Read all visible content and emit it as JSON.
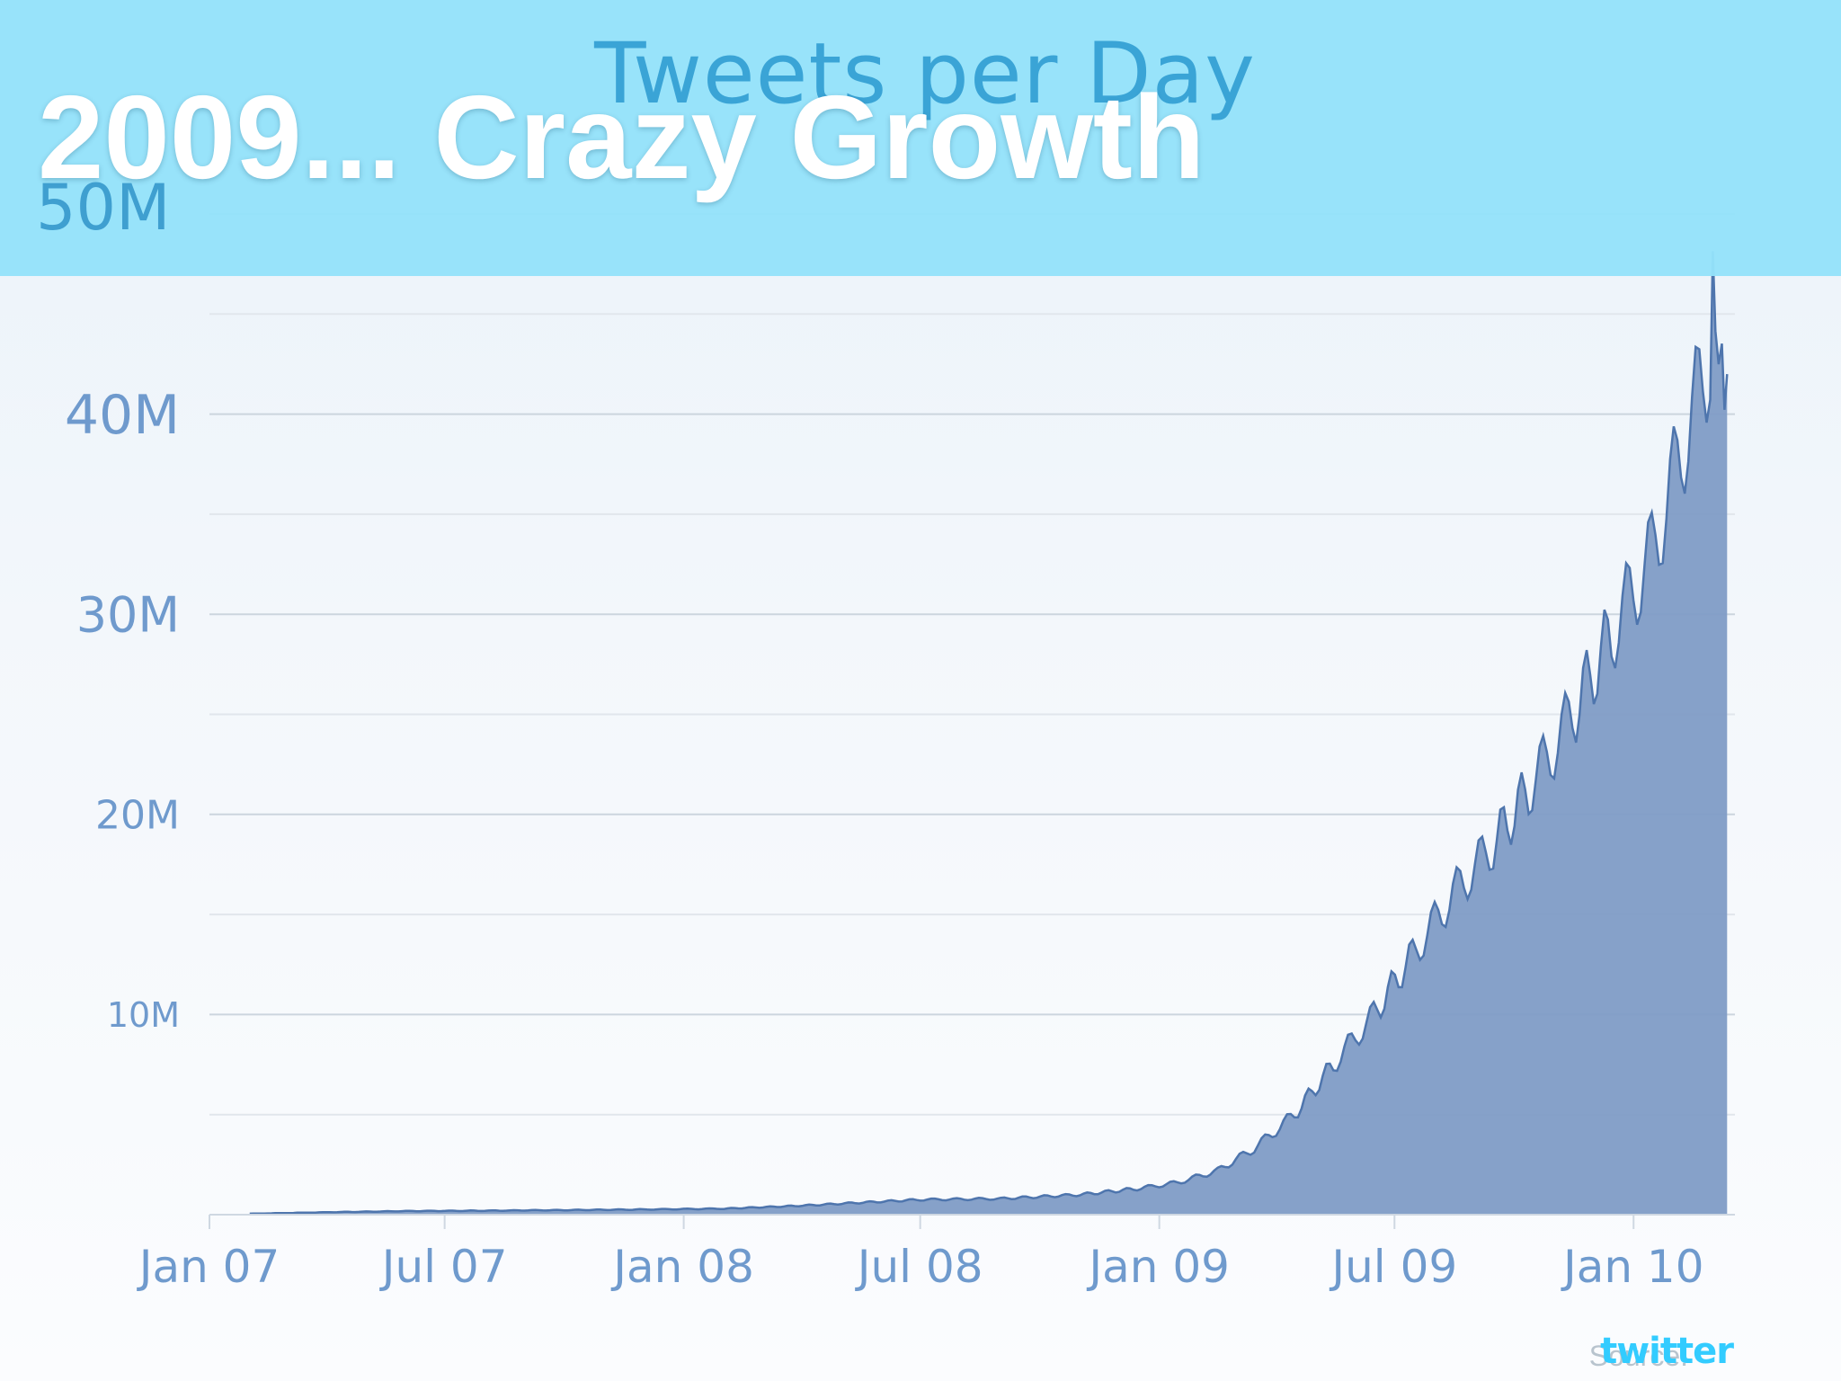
{
  "slide": {
    "heading": "2009... Crazy Growth",
    "source_label": "Source:",
    "source_brand": "twitter"
  },
  "colors": {
    "banner": "#94e2fa",
    "title": "#3aa4d6",
    "area_fill": "#7f9cc6",
    "area_line": "#4e75ad",
    "tick_text": "#6f9acd"
  },
  "chart_data": {
    "type": "area",
    "title": "Tweets per Day",
    "xlabel": "",
    "ylabel": "",
    "grid": true,
    "ylim": [
      0,
      50000000
    ],
    "y_ticks": [
      {
        "value": 10000000,
        "label": "10M"
      },
      {
        "value": 20000000,
        "label": "20M"
      },
      {
        "value": 30000000,
        "label": "30M"
      },
      {
        "value": 40000000,
        "label": "40M"
      },
      {
        "value": 50000000,
        "label": "50M"
      }
    ],
    "y_minor_ticks": [
      5000000,
      15000000,
      25000000,
      35000000,
      45000000
    ],
    "x_ticks": [
      {
        "date": "2007-01-01",
        "label": "Jan 07"
      },
      {
        "date": "2007-07-01",
        "label": "Jul 07"
      },
      {
        "date": "2008-01-01",
        "label": "Jan 08"
      },
      {
        "date": "2008-07-01",
        "label": "Jul 08"
      },
      {
        "date": "2009-01-01",
        "label": "Jan 09"
      },
      {
        "date": "2009-07-01",
        "label": "Jul 09"
      },
      {
        "date": "2010-01-01",
        "label": "Jan 10"
      }
    ],
    "xlim": [
      "2007-01-01",
      "2010-03-20"
    ],
    "series": [
      {
        "values": [
          {
            "x": "2007-02-01",
            "y": 50000
          },
          {
            "x": "2007-04-01",
            "y": 120000
          },
          {
            "x": "2007-06-01",
            "y": 180000
          },
          {
            "x": "2007-08-01",
            "y": 200000
          },
          {
            "x": "2007-10-01",
            "y": 230000
          },
          {
            "x": "2007-12-01",
            "y": 260000
          },
          {
            "x": "2008-02-01",
            "y": 300000
          },
          {
            "x": "2008-04-01",
            "y": 450000
          },
          {
            "x": "2008-05-15",
            "y": 600000
          },
          {
            "x": "2008-07-01",
            "y": 750000
          },
          {
            "x": "2008-09-01",
            "y": 800000
          },
          {
            "x": "2008-11-01",
            "y": 1000000
          },
          {
            "x": "2008-12-15",
            "y": 1300000
          },
          {
            "x": "2009-01-15",
            "y": 1600000
          },
          {
            "x": "2009-02-15",
            "y": 2200000
          },
          {
            "x": "2009-03-15",
            "y": 3300000
          },
          {
            "x": "2009-04-15",
            "y": 5000000
          },
          {
            "x": "2009-05-15",
            "y": 7500000
          },
          {
            "x": "2009-06-15",
            "y": 10000000
          },
          {
            "x": "2009-07-15",
            "y": 13000000
          },
          {
            "x": "2009-08-15",
            "y": 16000000
          },
          {
            "x": "2009-09-15",
            "y": 18500000
          },
          {
            "x": "2009-10-15",
            "y": 21500000
          },
          {
            "x": "2009-11-15",
            "y": 25000000
          },
          {
            "x": "2009-12-15",
            "y": 29000000
          },
          {
            "x": "2010-01-15",
            "y": 33000000
          },
          {
            "x": "2010-02-15",
            "y": 40000000
          },
          {
            "x": "2010-03-01",
            "y": 43000000
          },
          {
            "x": "2010-03-05",
            "y": 47000000
          },
          {
            "x": "2010-03-10",
            "y": 41000000
          },
          {
            "x": "2010-03-14",
            "y": 42000000
          }
        ]
      }
    ]
  }
}
